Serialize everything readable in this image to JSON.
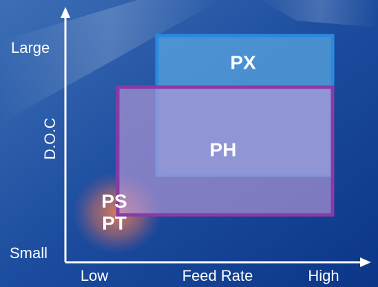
{
  "axes": {
    "y": {
      "title": "D.O.C",
      "top": "Large",
      "bottom": "Small"
    },
    "x": {
      "title": "Feed Rate",
      "left": "Low",
      "right": "High"
    }
  },
  "regions": [
    {
      "label": "PX"
    },
    {
      "label": "PH"
    },
    {
      "label": "PS"
    },
    {
      "label": "PT"
    }
  ]
}
